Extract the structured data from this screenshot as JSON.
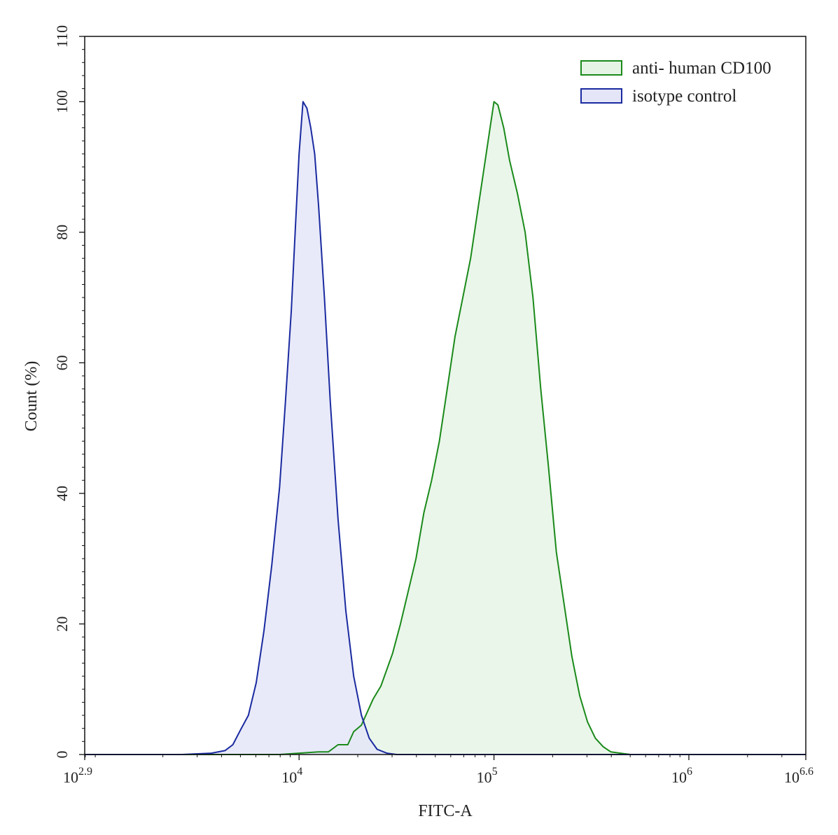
{
  "chart_data": {
    "type": "area",
    "xlabel": "FITC-A",
    "ylabel": "Count  (%)",
    "x_scale": "log10",
    "xlim_exponent": [
      2.9,
      6.6
    ],
    "ylim": [
      0,
      110
    ],
    "x_ticks": [
      {
        "base": "10",
        "exp": "2.9",
        "value": 2.9
      },
      {
        "base": "10",
        "exp": "4",
        "value": 4
      },
      {
        "base": "10",
        "exp": "5",
        "value": 5
      },
      {
        "base": "10",
        "exp": "6",
        "value": 6
      },
      {
        "base": "10",
        "exp": "6.6",
        "value": 6.6
      }
    ],
    "y_ticks": [
      "0",
      "20",
      "40",
      "60",
      "80",
      "100",
      "110"
    ],
    "legend_position": "top-right",
    "grid": false,
    "series": [
      {
        "name": "anti- human CD100",
        "stroke": "#1a8a1a",
        "fill": "#e6f4e6",
        "x_log10": [
          3.0,
          3.5,
          3.9,
          4.1,
          4.15,
          4.2,
          4.25,
          4.28,
          4.32,
          4.35,
          4.38,
          4.42,
          4.45,
          4.48,
          4.52,
          4.56,
          4.6,
          4.64,
          4.68,
          4.72,
          4.76,
          4.8,
          4.84,
          4.88,
          4.92,
          4.95,
          4.98,
          5.0,
          5.02,
          5.05,
          5.08,
          5.12,
          5.16,
          5.2,
          5.24,
          5.28,
          5.32,
          5.36,
          5.4,
          5.44,
          5.48,
          5.52,
          5.56,
          5.6,
          5.7,
          6.0,
          6.6
        ],
        "y": [
          0,
          0,
          0,
          0.4,
          0.4,
          1.5,
          1.5,
          3.5,
          4.5,
          6.5,
          8.5,
          10.5,
          13,
          15.5,
          20,
          25,
          30,
          37,
          42,
          48,
          56,
          64,
          70,
          76,
          84,
          90,
          96,
          100,
          99.5,
          96,
          91,
          86,
          80,
          70,
          56,
          44,
          31,
          23,
          15,
          9,
          5,
          2.5,
          1.2,
          0.4,
          0,
          0,
          0
        ]
      },
      {
        "name": "isotype control",
        "stroke": "#1a2aa0",
        "fill": "#e4e6f8",
        "x_log10": [
          2.9,
          3.4,
          3.55,
          3.62,
          3.66,
          3.7,
          3.74,
          3.78,
          3.82,
          3.86,
          3.9,
          3.93,
          3.96,
          3.98,
          4.0,
          4.02,
          4.04,
          4.06,
          4.08,
          4.1,
          4.13,
          4.16,
          4.2,
          4.24,
          4.28,
          4.32,
          4.36,
          4.4,
          4.45,
          4.5,
          4.6,
          5.0,
          6.6
        ],
        "y": [
          0,
          0,
          0.2,
          0.6,
          1.5,
          3.8,
          6,
          11,
          19,
          29,
          41,
          54,
          68,
          80,
          92,
          100,
          99,
          96,
          92,
          84,
          70,
          54,
          36,
          22,
          12,
          6,
          2.5,
          0.8,
          0.2,
          0,
          0,
          0,
          0
        ]
      }
    ]
  }
}
